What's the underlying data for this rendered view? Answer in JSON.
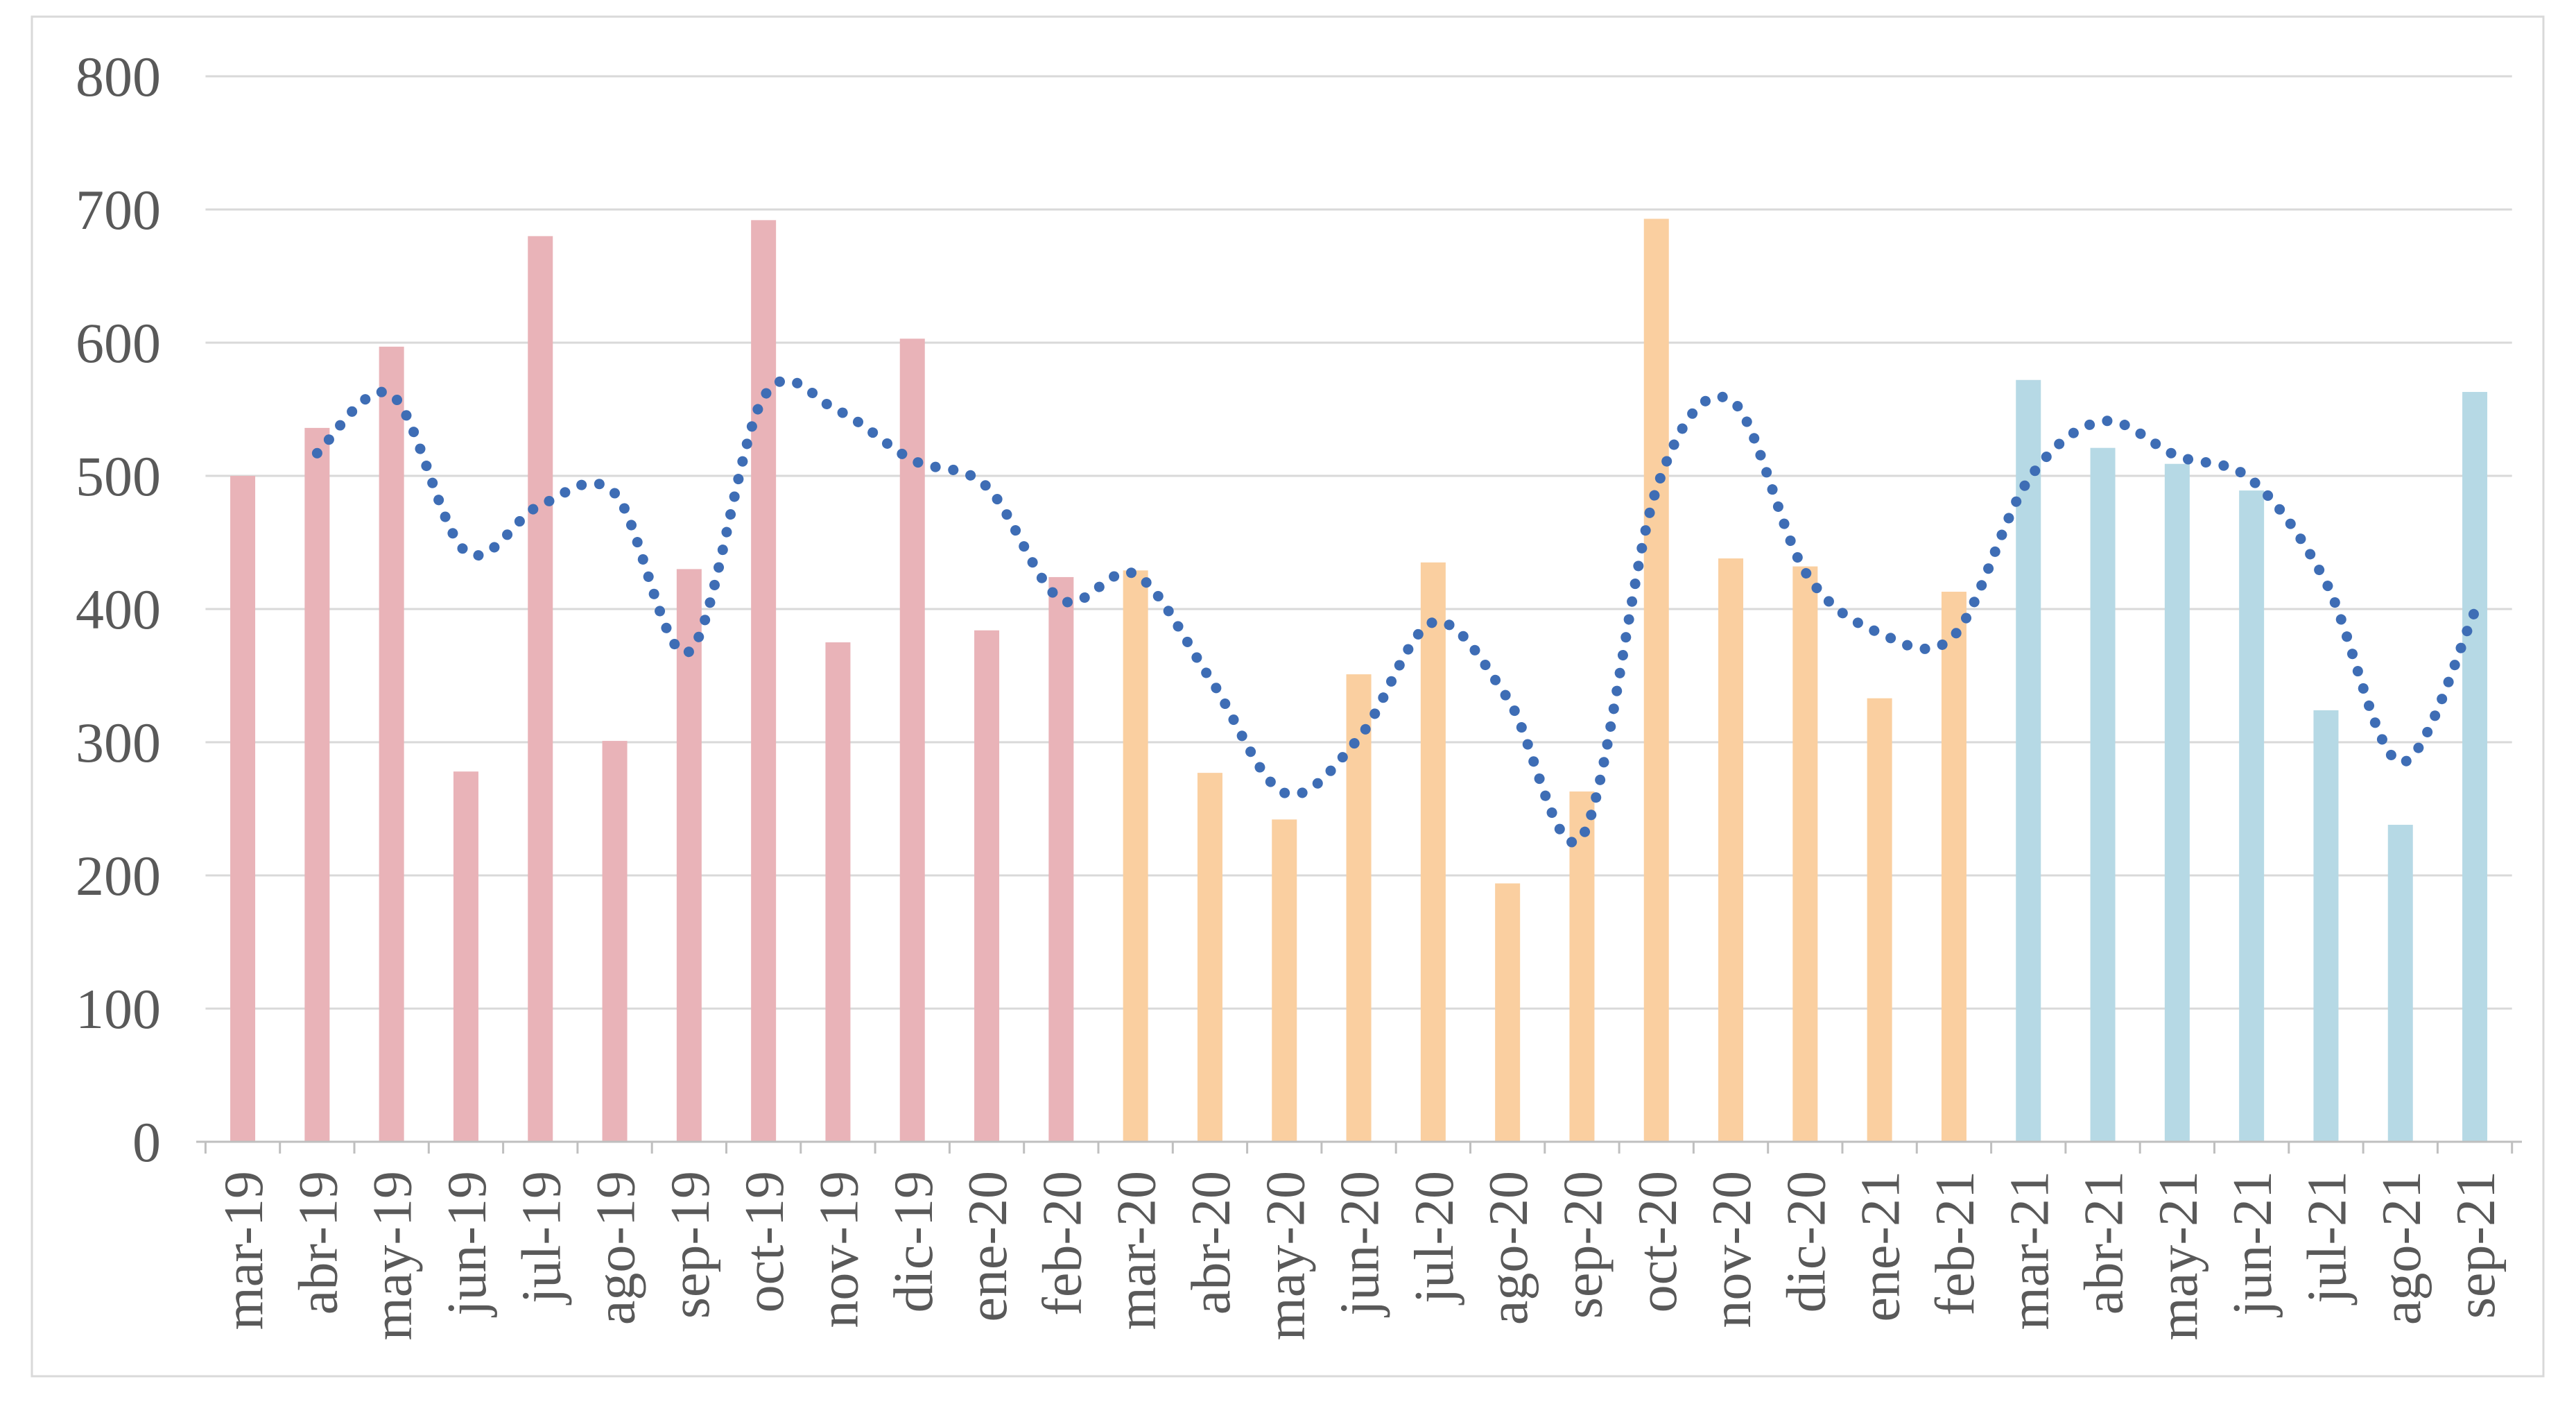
{
  "chart_data": {
    "type": "bar",
    "title": "",
    "xlabel": "",
    "ylabel": "",
    "categories": [
      "mar-19",
      "abr-19",
      "may-19",
      "jun-19",
      "jul-19",
      "ago-19",
      "sep-19",
      "oct-19",
      "nov-19",
      "dic-19",
      "ene-20",
      "feb-20",
      "mar-20",
      "abr-20",
      "may-20",
      "jun-20",
      "jul-20",
      "ago-20",
      "sep-20",
      "oct-20",
      "nov-20",
      "dic-20",
      "ene-21",
      "feb-21",
      "mar-21",
      "abr-21",
      "may-21",
      "jun-21",
      "jul-21",
      "ago-21",
      "sep-21"
    ],
    "series": [
      {
        "name": "monthly-bars",
        "type": "bar",
        "values": [
          500,
          536,
          597,
          278,
          680,
          301,
          430,
          692,
          375,
          603,
          384,
          424,
          429,
          277,
          242,
          351,
          435,
          194,
          263,
          693,
          438,
          432,
          333,
          413,
          572,
          521,
          509,
          489,
          324,
          238,
          563
        ],
        "color_groups": [
          {
            "label": "mar-19 to feb-20",
            "color": "#E9B3B8",
            "count": 12
          },
          {
            "label": "mar-20 to feb-21",
            "color": "#FACFA0",
            "count": 12
          },
          {
            "label": "mar-21 to sep-21",
            "color": "#B6D9E5",
            "count": 7
          }
        ]
      },
      {
        "name": "dotted-trend-line",
        "type": "line",
        "color": "#3E6DB5",
        "values": [
          null,
          517,
          561,
          443,
          478,
          487,
          368,
          559,
          549,
          512,
          492,
          407,
          426,
          348,
          262,
          303,
          390,
          333,
          229,
          490,
          557,
          428,
          382,
          380,
          497,
          541,
          515,
          497,
          420,
          285,
          398
        ]
      }
    ],
    "ylim": [
      0,
      800
    ],
    "ytick_step": 100,
    "yticks": [
      0,
      100,
      200,
      300,
      400,
      500,
      600,
      700,
      800
    ],
    "grid": true,
    "legend": "none"
  },
  "palette": {
    "background": "#FFFFFF",
    "chart_border": "#D9D9D9",
    "gridline": "#D9D9D9",
    "axis_line": "#BFBFBF",
    "tick_text": "#595959"
  }
}
